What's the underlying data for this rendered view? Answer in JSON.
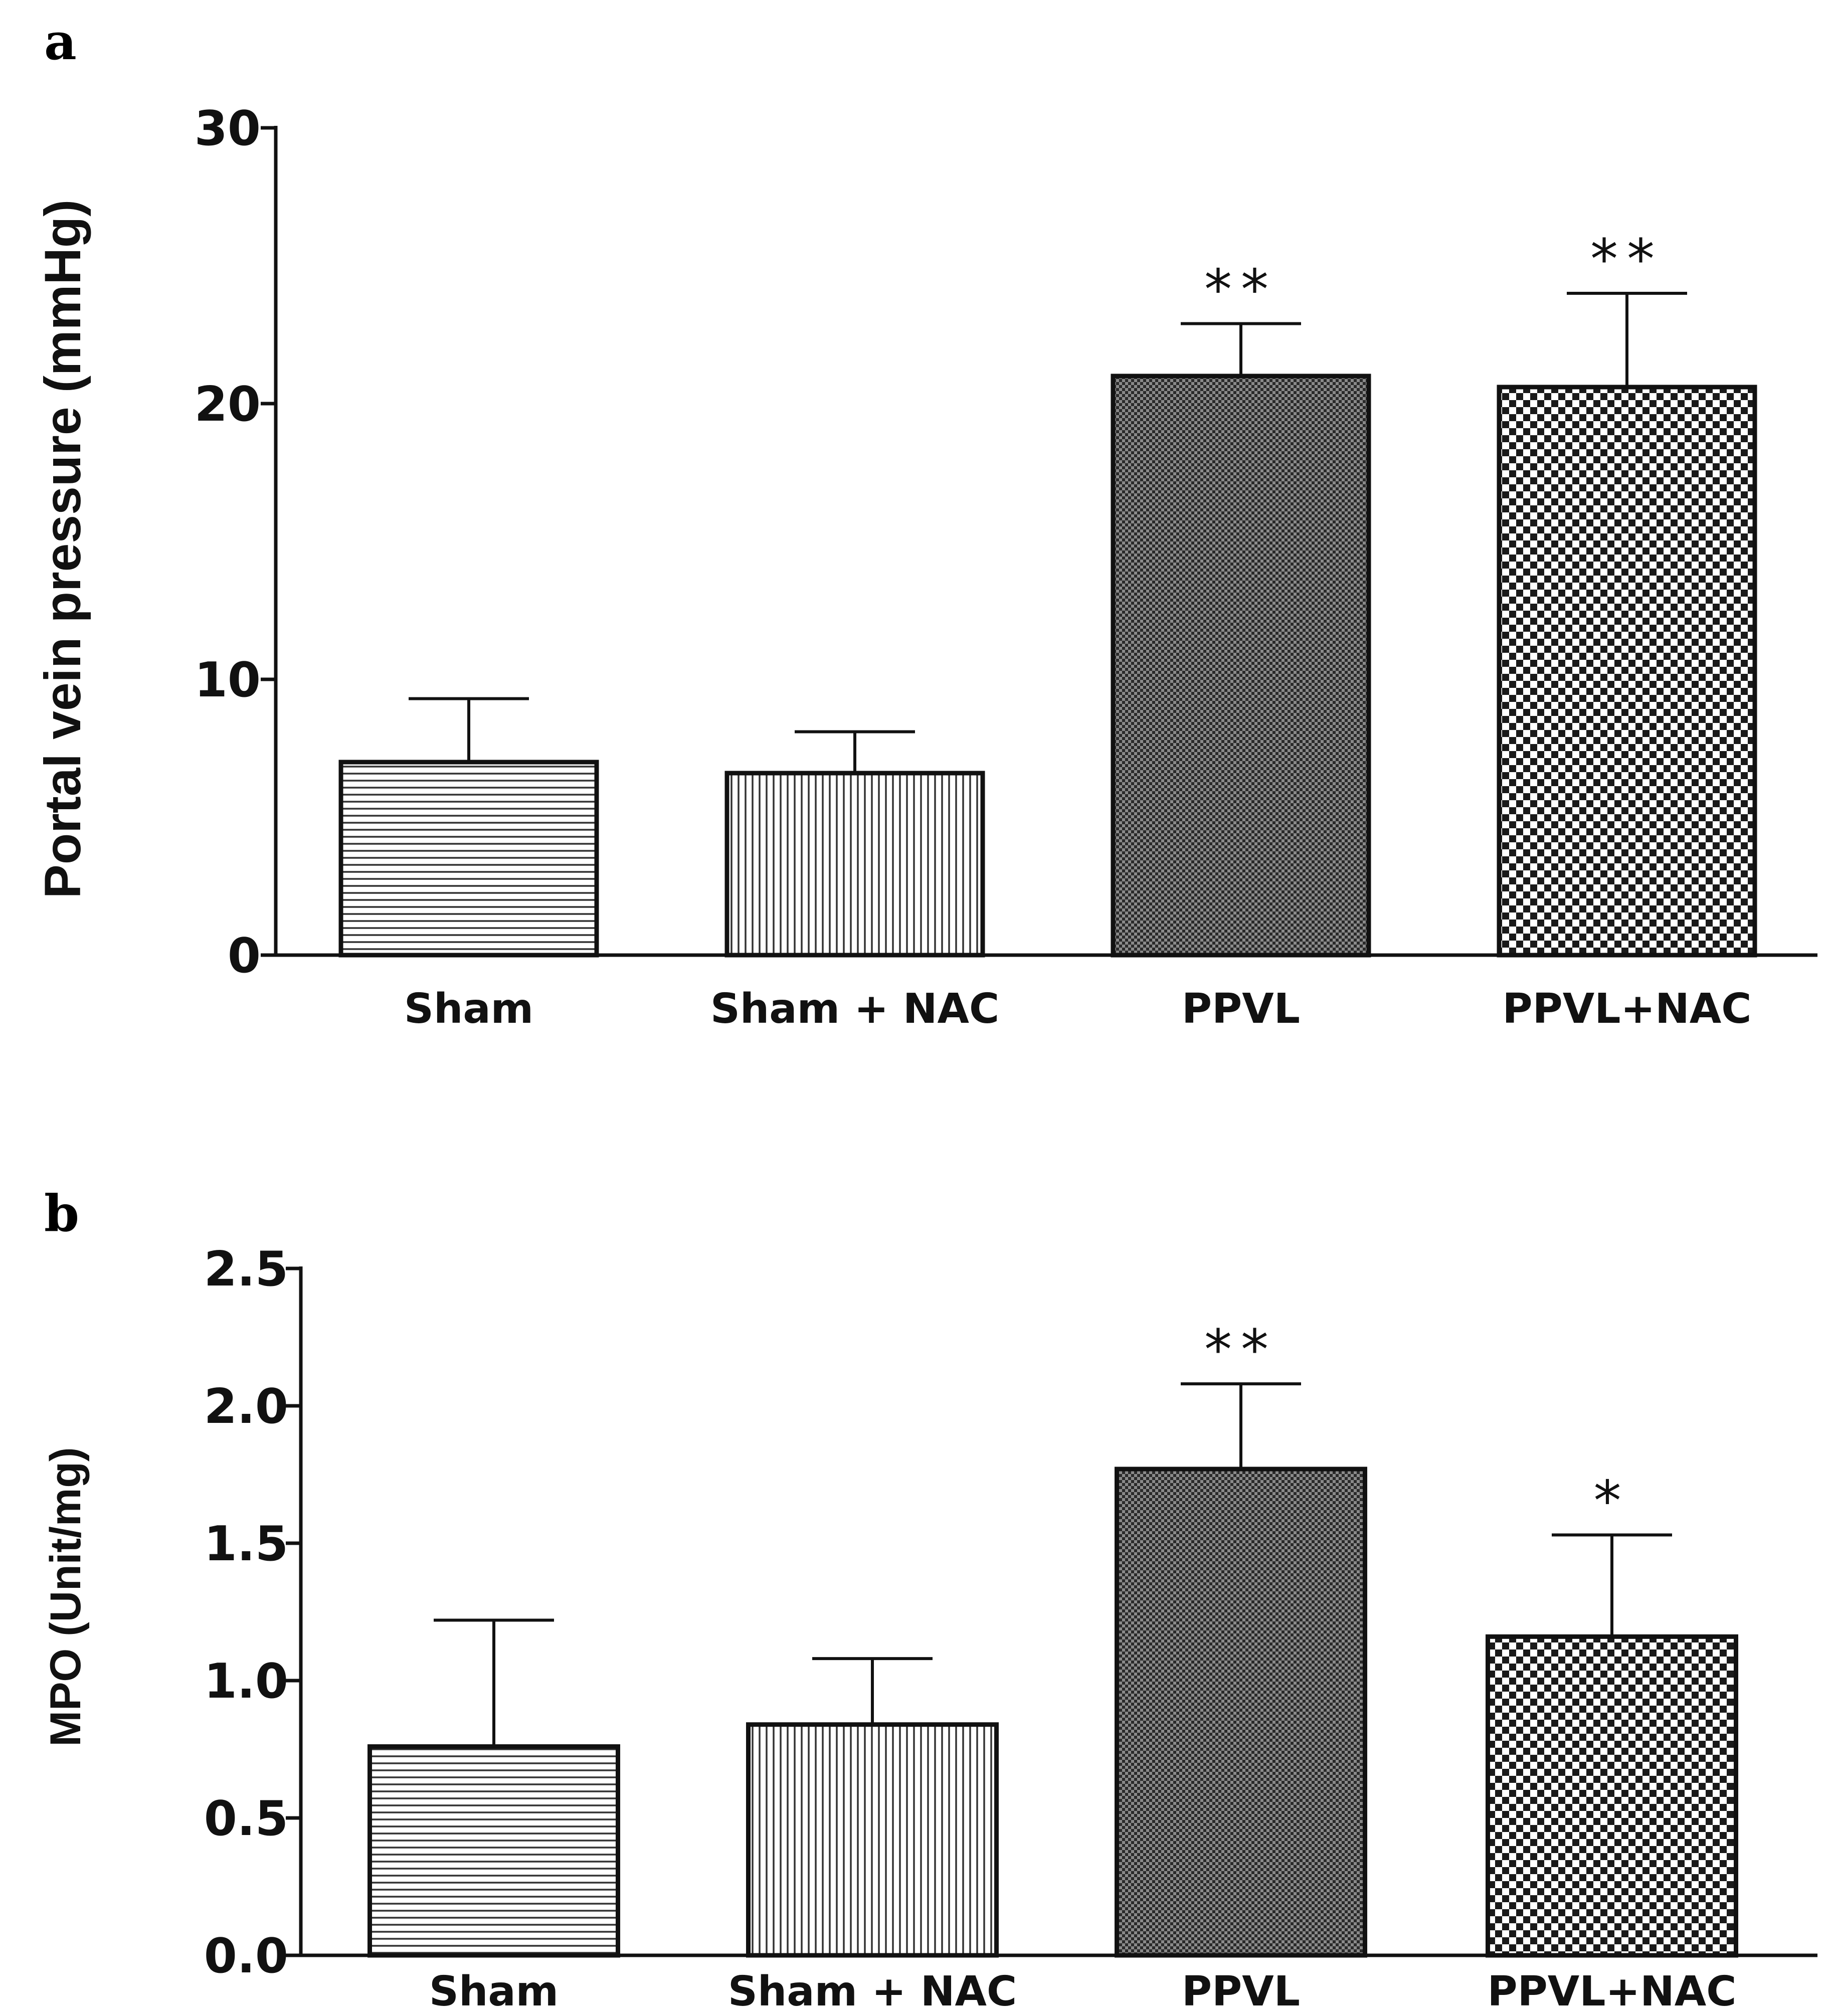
{
  "colors": {
    "ink": "#111111",
    "background": "#ffffff"
  },
  "chart_data": [
    {
      "panel": "a",
      "type": "bar",
      "ylabel": "Portal vein pressure (mmHg)",
      "xlabel": "",
      "ylim": [
        0,
        30
      ],
      "yticks": [
        "0",
        "10",
        "20",
        "30"
      ],
      "categories": [
        "Sham",
        "Sham + NAC",
        "PPVL",
        "PPVL+NAC"
      ],
      "values": [
        7.0,
        6.6,
        21.0,
        20.6
      ],
      "errors": [
        2.3,
        1.5,
        1.9,
        3.4
      ],
      "significance": [
        "",
        "",
        "**",
        "**"
      ],
      "patterns": [
        "hlines",
        "vlines",
        "dense-check",
        "checker"
      ]
    },
    {
      "panel": "b",
      "type": "bar",
      "ylabel": "MPO (Unit/mg)",
      "xlabel": "",
      "ylim": [
        0,
        2.5
      ],
      "yticks": [
        "0.0",
        "0.5",
        "1.0",
        "1.5",
        "2.0",
        "2.5"
      ],
      "categories": [
        "Sham",
        "Sham + NAC",
        "PPVL",
        "PPVL+NAC"
      ],
      "values": [
        0.76,
        0.84,
        1.77,
        1.16
      ],
      "errors": [
        0.46,
        0.24,
        0.31,
        0.37
      ],
      "significance": [
        "",
        "",
        "**",
        "*"
      ],
      "patterns": [
        "hlines",
        "vlines",
        "dense-check",
        "checker"
      ]
    }
  ]
}
